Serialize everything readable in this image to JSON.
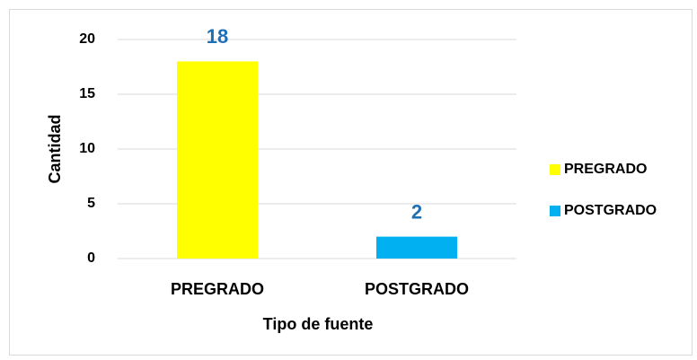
{
  "chart_data": {
    "type": "bar",
    "categories": [
      "PREGRADO",
      "POSTGRADO"
    ],
    "values": [
      18,
      2
    ],
    "colors": [
      "#ffff00",
      "#00b0f0"
    ],
    "xlabel": "Tipo de fuente",
    "ylabel": "Cantidad",
    "ylim": [
      0,
      20
    ],
    "yticks": [
      0,
      5,
      10,
      15,
      20
    ],
    "grid": true,
    "legend": "right",
    "value_label_color": "#1f6fb5"
  }
}
